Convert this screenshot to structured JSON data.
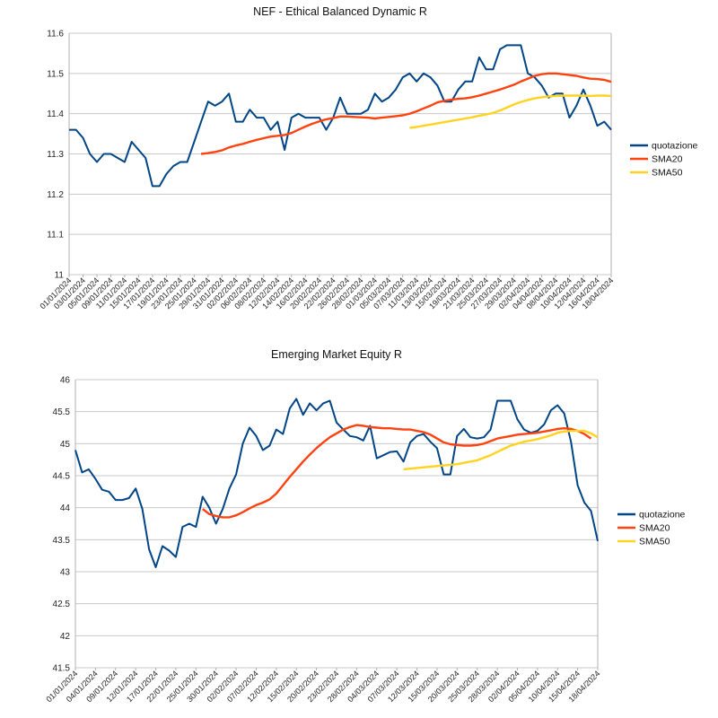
{
  "chart_data": [
    {
      "type": "line",
      "title": "NEF - Ethical Balanced Dynamic R",
      "xlabel": "",
      "ylabel": "",
      "ylim": [
        11,
        11.6
      ],
      "yticks": [
        "11",
        "11.1",
        "11.2",
        "11.3",
        "11.4",
        "11.5",
        "11.6"
      ],
      "grid": true,
      "legend": "right",
      "x_tick_labels": [
        "01/01/2024",
        "03/01/2024",
        "05/01/2024",
        "09/01/2024",
        "11/01/2024",
        "15/01/2024",
        "17/01/2024",
        "19/01/2024",
        "23/01/2024",
        "25/01/2024",
        "29/01/2024",
        "31/01/2024",
        "02/02/2024",
        "06/02/2024",
        "08/02/2024",
        "12/02/2024",
        "14/02/2024",
        "16/02/2024",
        "20/02/2024",
        "22/02/2024",
        "26/02/2024",
        "28/02/2024",
        "01/03/2024",
        "05/03/2024",
        "07/03/2024",
        "11/03/2024",
        "13/03/2024",
        "15/03/2024",
        "19/03/2024",
        "21/03/2024",
        "25/03/2024",
        "27/03/2024",
        "29/03/2024",
        "02/04/2024",
        "04/04/2024",
        "08/04/2024",
        "10/04/2024",
        "12/04/2024",
        "16/04/2024",
        "18/04/2024"
      ],
      "series": [
        {
          "name": "quotazione",
          "color": "#004586",
          "values": [
            11.36,
            11.36,
            11.34,
            11.3,
            11.28,
            11.3,
            11.3,
            11.29,
            11.28,
            11.33,
            11.31,
            11.29,
            11.22,
            11.22,
            11.25,
            11.27,
            11.28,
            11.28,
            11.33,
            11.38,
            11.43,
            11.42,
            11.43,
            11.45,
            11.38,
            11.38,
            11.41,
            11.39,
            11.39,
            11.36,
            11.38,
            11.31,
            11.39,
            11.4,
            11.39,
            11.39,
            11.39,
            11.36,
            11.39,
            11.44,
            11.4,
            11.4,
            11.4,
            11.41,
            11.45,
            11.43,
            11.44,
            11.46,
            11.49,
            11.5,
            11.48,
            11.5,
            11.49,
            11.47,
            11.43,
            11.43,
            11.46,
            11.48,
            11.48,
            11.54,
            11.51,
            11.51,
            11.56,
            11.57,
            11.57,
            11.57,
            11.5,
            11.49,
            11.47,
            11.44,
            11.45,
            11.45,
            11.39,
            11.42,
            11.46,
            11.42,
            11.37,
            11.38,
            11.36
          ]
        },
        {
          "name": "SMA20",
          "color": "#ff420e",
          "values": [
            null,
            null,
            null,
            null,
            null,
            null,
            null,
            null,
            null,
            null,
            null,
            null,
            null,
            null,
            null,
            null,
            null,
            null,
            null,
            11.3,
            11.302,
            11.305,
            11.309,
            11.316,
            11.321,
            11.325,
            11.33,
            11.335,
            11.339,
            11.343,
            11.345,
            11.347,
            11.352,
            11.36,
            11.368,
            11.375,
            11.381,
            11.386,
            11.389,
            11.393,
            11.393,
            11.392,
            11.391,
            11.39,
            11.388,
            11.39,
            11.392,
            11.394,
            11.396,
            11.4,
            11.406,
            11.413,
            11.42,
            11.428,
            11.432,
            11.435,
            11.437,
            11.438,
            11.441,
            11.445,
            11.45,
            11.455,
            11.46,
            11.466,
            11.472,
            11.48,
            11.487,
            11.494,
            11.498,
            11.5,
            11.5,
            11.498,
            11.496,
            11.494,
            11.49,
            11.487,
            11.486,
            11.484,
            11.479
          ]
        },
        {
          "name": "SMA50",
          "color": "#ffd320",
          "values": [
            null,
            null,
            null,
            null,
            null,
            null,
            null,
            null,
            null,
            null,
            null,
            null,
            null,
            null,
            null,
            null,
            null,
            null,
            null,
            null,
            null,
            null,
            null,
            null,
            null,
            null,
            null,
            null,
            null,
            null,
            null,
            null,
            null,
            null,
            null,
            null,
            null,
            null,
            null,
            null,
            null,
            null,
            null,
            null,
            null,
            null,
            null,
            null,
            null,
            11.365,
            11.367,
            11.37,
            11.373,
            11.376,
            11.379,
            11.382,
            11.385,
            11.388,
            11.391,
            11.395,
            11.398,
            11.402,
            11.408,
            11.415,
            11.423,
            11.429,
            11.434,
            11.438,
            11.441,
            11.443,
            11.444,
            11.445,
            11.445,
            11.445,
            11.445,
            11.444,
            11.445,
            11.445,
            11.444
          ]
        }
      ]
    },
    {
      "type": "line",
      "title": "Emerging Market Equity R",
      "xlabel": "",
      "ylabel": "",
      "ylim": [
        41.5,
        46
      ],
      "yticks": [
        "41.5",
        "42",
        "42.5",
        "43",
        "43.5",
        "44",
        "44.5",
        "45",
        "45.5",
        "46"
      ],
      "grid": true,
      "legend": "right",
      "x_tick_labels": [
        "01/01/2024",
        "04/01/2024",
        "09/01/2024",
        "12/01/2024",
        "17/01/2024",
        "22/01/2024",
        "25/01/2024",
        "30/01/2024",
        "02/02/2024",
        "07/02/2024",
        "12/02/2024",
        "15/02/2024",
        "20/02/2024",
        "23/02/2024",
        "28/02/2024",
        "04/03/2024",
        "07/03/2024",
        "12/03/2024",
        "15/03/2024",
        "20/03/2024",
        "25/03/2024",
        "28/03/2024",
        "02/04/2024",
        "05/04/2024",
        "10/04/2024",
        "15/04/2024",
        "18/04/2024"
      ],
      "series": [
        {
          "name": "quotazione",
          "color": "#004586",
          "values": [
            44.9,
            44.55,
            44.6,
            44.45,
            44.28,
            44.25,
            44.12,
            44.12,
            44.15,
            44.3,
            43.98,
            43.35,
            43.07,
            43.4,
            43.33,
            43.23,
            43.7,
            43.75,
            43.7,
            44.17,
            44.0,
            43.75,
            43.98,
            44.3,
            44.52,
            45.0,
            45.25,
            45.12,
            44.9,
            44.97,
            45.22,
            45.15,
            45.55,
            45.7,
            45.45,
            45.63,
            45.52,
            45.63,
            45.67,
            45.33,
            45.22,
            45.12,
            45.1,
            45.05,
            45.28,
            44.77,
            44.82,
            44.87,
            44.88,
            44.72,
            45.02,
            45.12,
            45.15,
            45.03,
            44.93,
            44.52,
            44.52,
            45.12,
            45.23,
            45.1,
            45.08,
            45.1,
            45.22,
            45.67,
            45.67,
            45.67,
            45.38,
            45.22,
            45.17,
            45.2,
            45.3,
            45.52,
            45.6,
            45.47,
            45.03,
            44.35,
            44.08,
            43.95,
            43.48
          ]
        },
        {
          "name": "SMA20",
          "color": "#ff420e",
          "values": [
            null,
            null,
            null,
            null,
            null,
            null,
            null,
            null,
            null,
            null,
            null,
            null,
            null,
            null,
            null,
            null,
            null,
            null,
            null,
            43.98,
            43.9,
            43.87,
            43.85,
            43.85,
            43.88,
            43.93,
            43.99,
            44.04,
            44.08,
            44.13,
            44.22,
            44.35,
            44.48,
            44.6,
            44.72,
            44.83,
            44.93,
            45.02,
            45.1,
            45.16,
            45.22,
            45.26,
            45.29,
            45.28,
            45.26,
            45.25,
            45.24,
            45.24,
            45.23,
            45.22,
            45.22,
            45.2,
            45.18,
            45.14,
            45.08,
            45.02,
            44.99,
            44.98,
            44.97,
            44.97,
            44.98,
            45.0,
            45.04,
            45.08,
            45.1,
            45.12,
            45.14,
            45.15,
            45.16,
            45.17,
            45.19,
            45.21,
            45.23,
            45.24,
            45.23,
            45.2,
            45.15,
            45.08
          ]
        },
        {
          "name": "SMA50",
          "color": "#ffd320",
          "values": [
            null,
            null,
            null,
            null,
            null,
            null,
            null,
            null,
            null,
            null,
            null,
            null,
            null,
            null,
            null,
            null,
            null,
            null,
            null,
            null,
            null,
            null,
            null,
            null,
            null,
            null,
            null,
            null,
            null,
            null,
            null,
            null,
            null,
            null,
            null,
            null,
            null,
            null,
            null,
            null,
            null,
            null,
            null,
            null,
            null,
            null,
            null,
            null,
            null,
            44.6,
            44.61,
            44.62,
            44.63,
            44.64,
            44.65,
            44.66,
            44.67,
            44.68,
            44.7,
            44.72,
            44.74,
            44.78,
            44.82,
            44.87,
            44.92,
            44.97,
            45.0,
            45.03,
            45.05,
            45.07,
            45.1,
            45.13,
            45.17,
            45.19,
            45.2,
            45.2,
            45.2,
            45.16,
            45.1
          ]
        }
      ]
    }
  ]
}
